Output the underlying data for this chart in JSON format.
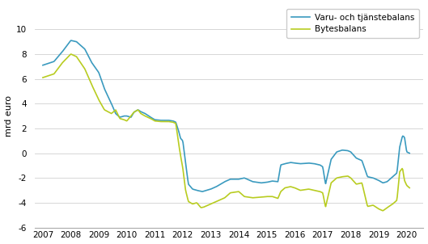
{
  "ylabel": "mrd euro",
  "ylim": [
    -6,
    12
  ],
  "yticks": [
    -6,
    -4,
    -2,
    0,
    2,
    4,
    6,
    8,
    10
  ],
  "xlim_start": 2006.7,
  "xlim_end": 2020.6,
  "xtick_labels": [
    "2007",
    "2008",
    "2009",
    "2010",
    "2011",
    "2012",
    "2013",
    "2014",
    "2015",
    "2016",
    "2017",
    "2018",
    "2019",
    "2020"
  ],
  "legend_labels": [
    "Varu- och tjänstebalans",
    "Bytesbalans"
  ],
  "line1_color": "#3a9abf",
  "line2_color": "#b8cc20",
  "background_color": "#ffffff",
  "s1_keypoints": [
    [
      2007.0,
      7.1
    ],
    [
      2007.4,
      7.4
    ],
    [
      2007.7,
      8.2
    ],
    [
      2008.0,
      9.1
    ],
    [
      2008.2,
      9.0
    ],
    [
      2008.5,
      8.4
    ],
    [
      2008.75,
      7.3
    ],
    [
      2009.0,
      6.5
    ],
    [
      2009.2,
      5.2
    ],
    [
      2009.45,
      4.0
    ],
    [
      2009.6,
      3.2
    ],
    [
      2009.75,
      2.9
    ],
    [
      2009.9,
      3.0
    ],
    [
      2010.0,
      3.0
    ],
    [
      2010.15,
      2.9
    ],
    [
      2010.25,
      3.3
    ],
    [
      2010.4,
      3.5
    ],
    [
      2010.5,
      3.35
    ],
    [
      2010.65,
      3.2
    ],
    [
      2010.85,
      2.9
    ],
    [
      2011.0,
      2.7
    ],
    [
      2011.2,
      2.65
    ],
    [
      2011.5,
      2.65
    ],
    [
      2011.65,
      2.6
    ],
    [
      2011.75,
      2.5
    ],
    [
      2011.85,
      1.8
    ],
    [
      2011.92,
      1.2
    ],
    [
      2012.0,
      1.0
    ],
    [
      2012.1,
      -0.8
    ],
    [
      2012.2,
      -2.5
    ],
    [
      2012.35,
      -2.9
    ],
    [
      2012.5,
      -3.0
    ],
    [
      2012.7,
      -3.1
    ],
    [
      2013.0,
      -2.9
    ],
    [
      2013.2,
      -2.7
    ],
    [
      2013.5,
      -2.3
    ],
    [
      2013.7,
      -2.1
    ],
    [
      2014.0,
      -2.1
    ],
    [
      2014.2,
      -2.0
    ],
    [
      2014.5,
      -2.3
    ],
    [
      2014.8,
      -2.4
    ],
    [
      2015.0,
      -2.35
    ],
    [
      2015.2,
      -2.25
    ],
    [
      2015.4,
      -2.3
    ],
    [
      2015.5,
      -0.95
    ],
    [
      2015.65,
      -0.85
    ],
    [
      2015.85,
      -0.75
    ],
    [
      2016.0,
      -0.8
    ],
    [
      2016.2,
      -0.85
    ],
    [
      2016.5,
      -0.8
    ],
    [
      2016.7,
      -0.85
    ],
    [
      2016.9,
      -0.95
    ],
    [
      2017.0,
      -1.1
    ],
    [
      2017.1,
      -2.5
    ],
    [
      2017.3,
      -0.5
    ],
    [
      2017.5,
      0.1
    ],
    [
      2017.7,
      0.25
    ],
    [
      2017.9,
      0.2
    ],
    [
      2018.0,
      0.1
    ],
    [
      2018.2,
      -0.4
    ],
    [
      2018.4,
      -0.6
    ],
    [
      2018.6,
      -1.9
    ],
    [
      2018.8,
      -2.0
    ],
    [
      2019.0,
      -2.2
    ],
    [
      2019.15,
      -2.4
    ],
    [
      2019.3,
      -2.3
    ],
    [
      2019.5,
      -1.9
    ],
    [
      2019.65,
      -1.6
    ],
    [
      2019.75,
      0.5
    ],
    [
      2019.85,
      1.4
    ],
    [
      2019.92,
      1.3
    ],
    [
      2020.0,
      0.1
    ],
    [
      2020.1,
      0.0
    ]
  ],
  "s2_keypoints": [
    [
      2007.0,
      6.1
    ],
    [
      2007.4,
      6.4
    ],
    [
      2007.7,
      7.3
    ],
    [
      2008.0,
      8.0
    ],
    [
      2008.2,
      7.8
    ],
    [
      2008.5,
      6.8
    ],
    [
      2008.75,
      5.5
    ],
    [
      2009.0,
      4.3
    ],
    [
      2009.2,
      3.5
    ],
    [
      2009.45,
      3.2
    ],
    [
      2009.6,
      3.5
    ],
    [
      2009.75,
      2.8
    ],
    [
      2009.9,
      2.7
    ],
    [
      2010.0,
      2.6
    ],
    [
      2010.15,
      3.0
    ],
    [
      2010.25,
      3.3
    ],
    [
      2010.4,
      3.5
    ],
    [
      2010.5,
      3.2
    ],
    [
      2010.65,
      3.0
    ],
    [
      2010.85,
      2.8
    ],
    [
      2011.0,
      2.6
    ],
    [
      2011.2,
      2.55
    ],
    [
      2011.5,
      2.55
    ],
    [
      2011.65,
      2.5
    ],
    [
      2011.75,
      2.4
    ],
    [
      2011.85,
      0.8
    ],
    [
      2011.92,
      -0.2
    ],
    [
      2012.0,
      -1.2
    ],
    [
      2012.1,
      -3.0
    ],
    [
      2012.2,
      -3.9
    ],
    [
      2012.35,
      -4.1
    ],
    [
      2012.5,
      -4.0
    ],
    [
      2012.65,
      -4.4
    ],
    [
      2012.75,
      -4.35
    ],
    [
      2013.0,
      -4.1
    ],
    [
      2013.2,
      -3.9
    ],
    [
      2013.5,
      -3.6
    ],
    [
      2013.7,
      -3.2
    ],
    [
      2014.0,
      -3.1
    ],
    [
      2014.2,
      -3.5
    ],
    [
      2014.5,
      -3.6
    ],
    [
      2014.8,
      -3.55
    ],
    [
      2015.0,
      -3.5
    ],
    [
      2015.2,
      -3.5
    ],
    [
      2015.4,
      -3.65
    ],
    [
      2015.5,
      -3.1
    ],
    [
      2015.65,
      -2.8
    ],
    [
      2015.85,
      -2.7
    ],
    [
      2016.0,
      -2.8
    ],
    [
      2016.2,
      -3.0
    ],
    [
      2016.5,
      -2.9
    ],
    [
      2016.7,
      -3.0
    ],
    [
      2016.9,
      -3.1
    ],
    [
      2017.0,
      -3.2
    ],
    [
      2017.1,
      -4.35
    ],
    [
      2017.3,
      -2.4
    ],
    [
      2017.5,
      -2.0
    ],
    [
      2017.7,
      -1.9
    ],
    [
      2017.9,
      -1.85
    ],
    [
      2018.0,
      -2.0
    ],
    [
      2018.2,
      -2.5
    ],
    [
      2018.4,
      -2.4
    ],
    [
      2018.6,
      -4.3
    ],
    [
      2018.8,
      -4.2
    ],
    [
      2019.0,
      -4.5
    ],
    [
      2019.15,
      -4.65
    ],
    [
      2019.3,
      -4.4
    ],
    [
      2019.5,
      -4.1
    ],
    [
      2019.65,
      -3.8
    ],
    [
      2019.75,
      -1.5
    ],
    [
      2019.85,
      -1.2
    ],
    [
      2019.92,
      -2.2
    ],
    [
      2020.0,
      -2.6
    ],
    [
      2020.1,
      -2.8
    ]
  ]
}
